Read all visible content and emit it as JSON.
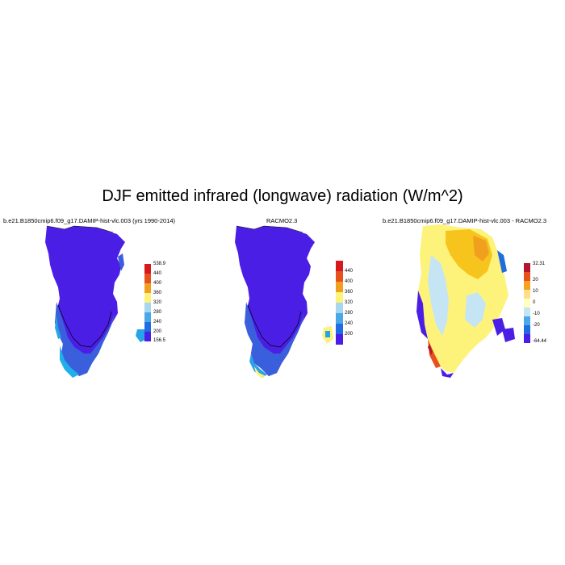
{
  "main_title": "DJF emitted infrared (longwave) radiation (W/m^2)",
  "panels": [
    {
      "title": "b.e21.B1850cmip6.f09_g17.DAMIP-hist-vlc.003 (yrs 1990-2014)",
      "colorbar": {
        "labels": [
          "538.9",
          "440",
          "400",
          "360",
          "320",
          "280",
          "240",
          "200",
          "156.5"
        ],
        "colors": [
          "#d7191c",
          "#e8501e",
          "#f0a01e",
          "#fef37a",
          "#a6d6f0",
          "#4aa8e8",
          "#1f6de0",
          "#4b1ee6"
        ]
      }
    },
    {
      "title": "RACMO2.3",
      "colorbar": {
        "labels": [
          "440",
          "400",
          "360",
          "320",
          "280",
          "240",
          "200"
        ],
        "colors": [
          "#d7191c",
          "#e8501e",
          "#f0a01e",
          "#fef37a",
          "#a6d6f0",
          "#4aa8e8",
          "#1f6de0",
          "#4b1ee6"
        ]
      }
    },
    {
      "title": "b.e21.B1850cmip6.f09_g17.DAMIP-hist-vlc.003 - RACMO2.3",
      "colorbar": {
        "labels": [
          "32.31",
          "20",
          "10",
          "0",
          "-10",
          "-20",
          "-64.44"
        ],
        "colors": [
          "#b2182b",
          "#e8501e",
          "#f7a31e",
          "#fee08b",
          "#ffffbf",
          "#c6e5f4",
          "#4aa8e8",
          "#1f6de0",
          "#4b1ee6"
        ]
      }
    }
  ]
}
